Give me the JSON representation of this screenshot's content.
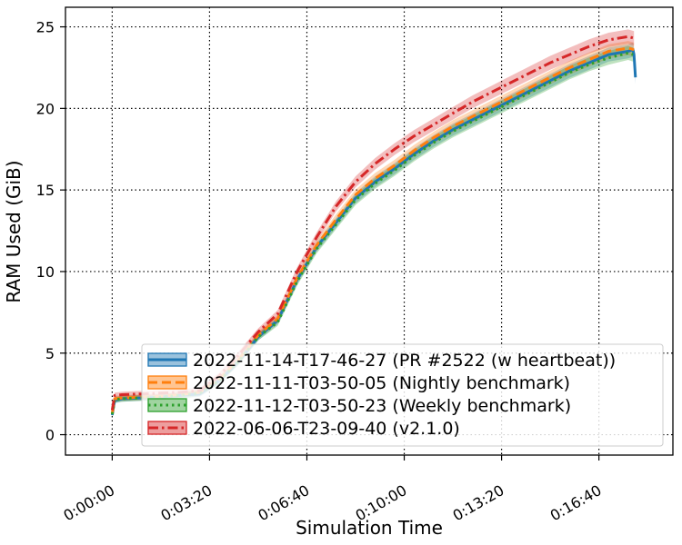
{
  "chart_data": {
    "type": "line",
    "title": "",
    "xlabel": "Simulation Time",
    "ylabel": "RAM Used (GiB)",
    "x_unit": "seconds",
    "xlim": [
      -96,
      1152
    ],
    "ylim": [
      -1.25,
      26.2
    ],
    "grid": true,
    "legend_position": "lower-right",
    "xticks": [
      {
        "value": 0,
        "label": "0:00:00"
      },
      {
        "value": 200,
        "label": "0:03:20"
      },
      {
        "value": 400,
        "label": "0:06:40"
      },
      {
        "value": 600,
        "label": "0:10:00"
      },
      {
        "value": 800,
        "label": "0:13:20"
      },
      {
        "value": 1000,
        "label": "0:16:40"
      }
    ],
    "yticks": [
      {
        "value": 0,
        "label": "0"
      },
      {
        "value": 5,
        "label": "5"
      },
      {
        "value": 10,
        "label": "10"
      },
      {
        "value": 15,
        "label": "15"
      },
      {
        "value": 20,
        "label": "20"
      },
      {
        "value": 25,
        "label": "25"
      }
    ],
    "series": [
      {
        "name": "2022-11-14-T17-46-27 (PR #2522 (w heartbeat))",
        "color": "#1f77b4",
        "style": "solid",
        "x": [
          0,
          5,
          20,
          60,
          100,
          140,
          180,
          220,
          260,
          300,
          340,
          380,
          420,
          460,
          500,
          540,
          580,
          620,
          660,
          700,
          740,
          780,
          820,
          860,
          900,
          940,
          980,
          1020,
          1060,
          1070,
          1072,
          1075
        ],
        "y": [
          1.2,
          2.1,
          2.2,
          2.25,
          2.3,
          2.4,
          2.5,
          3.3,
          4.5,
          6.0,
          7.0,
          9.5,
          11.5,
          13.0,
          14.5,
          15.5,
          16.3,
          17.2,
          18.0,
          18.7,
          19.3,
          19.9,
          20.5,
          21.1,
          21.7,
          22.3,
          22.8,
          23.3,
          23.5,
          23.6,
          23.3,
          21.9
        ]
      },
      {
        "name": "2022-11-11-T03-50-05 (Nightly benchmark)",
        "color": "#ff7f0e",
        "style": "dashed",
        "x": [
          0,
          5,
          20,
          60,
          100,
          140,
          180,
          220,
          260,
          300,
          340,
          380,
          420,
          460,
          500,
          540,
          580,
          620,
          660,
          700,
          740,
          780,
          820,
          860,
          900,
          940,
          980,
          1020,
          1060,
          1072
        ],
        "y": [
          1.3,
          2.2,
          2.25,
          2.3,
          2.35,
          2.45,
          2.6,
          3.4,
          4.6,
          6.1,
          7.1,
          9.6,
          11.6,
          13.2,
          14.7,
          15.7,
          16.5,
          17.4,
          18.2,
          18.9,
          19.5,
          20.1,
          20.7,
          21.3,
          21.9,
          22.5,
          23.0,
          23.5,
          23.7,
          23.6
        ]
      },
      {
        "name": "2022-11-12-T03-50-23 (Weekly benchmark)",
        "color": "#2ca02c",
        "style": "dotted",
        "x": [
          0,
          5,
          20,
          60,
          100,
          140,
          180,
          220,
          260,
          300,
          340,
          380,
          420,
          460,
          500,
          540,
          580,
          620,
          660,
          700,
          740,
          780,
          820,
          860,
          900,
          940,
          980,
          1020,
          1060,
          1070
        ],
        "y": [
          1.25,
          2.15,
          2.2,
          2.25,
          2.3,
          2.4,
          2.55,
          3.3,
          4.5,
          6.0,
          6.9,
          9.4,
          11.4,
          12.9,
          14.4,
          15.4,
          16.2,
          17.1,
          17.9,
          18.6,
          19.2,
          19.8,
          20.4,
          21.0,
          21.6,
          22.2,
          22.7,
          23.1,
          23.4,
          23.3
        ]
      },
      {
        "name": "2022-06-06-T23-09-40 (v2.1.0)",
        "color": "#d62728",
        "style": "dashdot",
        "x": [
          0,
          5,
          20,
          60,
          100,
          140,
          180,
          220,
          260,
          300,
          340,
          380,
          420,
          460,
          500,
          540,
          580,
          620,
          660,
          700,
          740,
          780,
          820,
          860,
          900,
          940,
          980,
          1020,
          1060,
          1072
        ],
        "y": [
          1.5,
          2.4,
          2.45,
          2.5,
          2.55,
          2.6,
          2.7,
          3.6,
          4.9,
          6.3,
          7.4,
          10.0,
          12.1,
          14.0,
          15.5,
          16.6,
          17.5,
          18.3,
          19.0,
          19.7,
          20.4,
          21.0,
          21.6,
          22.2,
          22.8,
          23.3,
          23.8,
          24.2,
          24.4,
          24.3
        ]
      }
    ]
  }
}
